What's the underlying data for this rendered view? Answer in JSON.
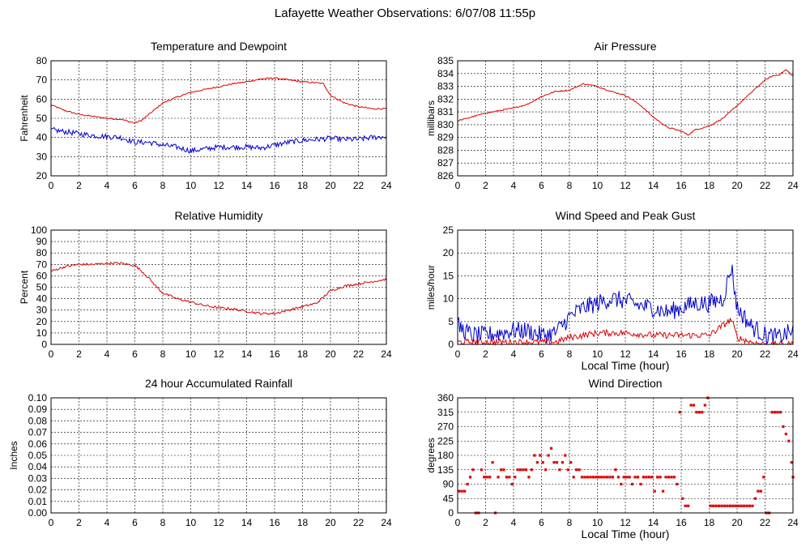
{
  "title": "Lafayette Weather Observations: 6/07/08 11:55p",
  "colors": {
    "primary": "#dd0000",
    "secondary": "#0000cc"
  },
  "chart_data": [
    {
      "id": "temp",
      "type": "line",
      "title": "Temperature and Dewpoint",
      "ylabel": "Fahrenheit",
      "xlabel": "",
      "xlim": [
        0,
        24
      ],
      "ylim": [
        20,
        80
      ],
      "xticks": [
        0,
        2,
        4,
        6,
        8,
        10,
        12,
        14,
        16,
        18,
        20,
        22,
        24
      ],
      "yticks": [
        "20",
        "30",
        "40",
        "50",
        "60",
        "70",
        "80"
      ],
      "ytick_values": [
        20,
        30,
        40,
        50,
        60,
        70,
        80
      ],
      "grid": true,
      "series": [
        {
          "color": "red",
          "noise": 0.4,
          "x": [
            0,
            1,
            2,
            3,
            4,
            5,
            5.5,
            6,
            6.5,
            7,
            7.5,
            8,
            8.5,
            9,
            10,
            11,
            12,
            13,
            14,
            15,
            16,
            17,
            18,
            19,
            19.5,
            20,
            21,
            22,
            23,
            24
          ],
          "y": [
            57,
            54,
            52,
            51,
            50,
            49.5,
            48.5,
            47.5,
            49,
            52,
            55,
            58,
            59.5,
            61,
            63.5,
            65,
            66.5,
            68,
            69,
            70.5,
            71,
            70,
            69,
            68.5,
            68,
            62,
            58,
            56,
            55,
            55
          ]
        },
        {
          "color": "blue",
          "noise": 1.4,
          "x": [
            0,
            1,
            2,
            3,
            4,
            5,
            6,
            7,
            8,
            9,
            10,
            11,
            12,
            13,
            14,
            15,
            16,
            17,
            18,
            19,
            20,
            21,
            22,
            23,
            24
          ],
          "y": [
            44,
            43,
            42,
            41,
            40.5,
            40,
            37.5,
            37.5,
            36,
            35,
            33,
            34,
            35,
            35,
            35,
            34.5,
            36,
            37.5,
            38.5,
            39,
            39.5,
            39,
            39,
            40,
            40.5
          ]
        }
      ]
    },
    {
      "id": "pressure",
      "type": "line",
      "title": "Air Pressure",
      "ylabel": "millibars",
      "xlabel": "",
      "xlim": [
        0,
        24
      ],
      "ylim": [
        826,
        835
      ],
      "xticks": [
        0,
        2,
        4,
        6,
        8,
        10,
        12,
        14,
        16,
        18,
        20,
        22,
        24
      ],
      "yticks": [
        "826",
        "827",
        "828",
        "829",
        "830",
        "831",
        "832",
        "833",
        "834",
        "835"
      ],
      "ytick_values": [
        826,
        827,
        828,
        829,
        830,
        831,
        832,
        833,
        834,
        835
      ],
      "grid": true,
      "series": [
        {
          "color": "red",
          "noise": 0.05,
          "x": [
            0,
            1,
            2,
            3,
            4,
            5,
            6,
            7,
            8,
            9,
            10,
            11,
            12,
            13,
            14,
            15,
            16,
            16.5,
            17,
            18,
            19,
            20,
            21,
            22,
            22.5,
            23,
            23.5,
            24
          ],
          "y": [
            830.3,
            830.6,
            830.9,
            831.1,
            831.3,
            831.6,
            832.2,
            832.6,
            832.7,
            833.2,
            833.0,
            832.6,
            832.3,
            831.6,
            830.6,
            829.8,
            829.5,
            829.2,
            829.6,
            829.9,
            830.5,
            831.5,
            832.5,
            833.5,
            833.8,
            833.9,
            834.3,
            833.8
          ]
        }
      ]
    },
    {
      "id": "humidity",
      "type": "line",
      "title": "Relative Humidity",
      "ylabel": "Percent",
      "xlabel": "",
      "xlim": [
        0,
        24
      ],
      "ylim": [
        0,
        100
      ],
      "xticks": [
        0,
        2,
        4,
        6,
        8,
        10,
        12,
        14,
        16,
        18,
        20,
        22,
        24
      ],
      "yticks": [
        "0",
        "10",
        "20",
        "30",
        "40",
        "50",
        "60",
        "70",
        "80",
        "90",
        "100"
      ],
      "ytick_values": [
        0,
        10,
        20,
        30,
        40,
        50,
        60,
        70,
        80,
        90,
        100
      ],
      "grid": true,
      "series": [
        {
          "color": "red",
          "noise": 1.0,
          "x": [
            0,
            1,
            2,
            3,
            4,
            5,
            6,
            6.5,
            7,
            7.5,
            8,
            9,
            10,
            11,
            12,
            13,
            14,
            15,
            16,
            17,
            18,
            19,
            20,
            21,
            22,
            23,
            24
          ],
          "y": [
            64,
            68,
            70,
            70,
            71,
            71,
            69,
            64,
            58,
            51,
            45,
            40,
            37,
            34,
            32,
            31,
            29,
            27,
            27,
            30,
            33,
            36,
            47,
            51,
            53,
            55,
            57
          ]
        }
      ]
    },
    {
      "id": "wind",
      "type": "line",
      "title": "Wind Speed and Peak Gust",
      "ylabel": "miles/hour",
      "xlabel": "Local Time (hour)",
      "xlim": [
        0,
        24
      ],
      "ylim": [
        0,
        25
      ],
      "xticks": [
        0,
        2,
        4,
        6,
        8,
        10,
        12,
        14,
        16,
        18,
        20,
        22,
        24
      ],
      "yticks": [
        "0",
        "5",
        "10",
        "15",
        "20",
        "25"
      ],
      "ytick_values": [
        0,
        5,
        10,
        15,
        20,
        25
      ],
      "grid": true,
      "series": [
        {
          "color": "blue",
          "noise": 2.0,
          "x": [
            0,
            1,
            2,
            3,
            4,
            5,
            6,
            7,
            8,
            9,
            10,
            11,
            12,
            13,
            14,
            15,
            16,
            17,
            18,
            19,
            19.6,
            20,
            21,
            22,
            23,
            24
          ],
          "y": [
            4,
            2,
            2,
            2.5,
            3,
            3,
            2,
            2.5,
            6,
            8,
            9,
            10,
            9.5,
            8.5,
            8,
            7,
            8,
            9,
            9,
            10,
            17,
            8,
            4,
            2,
            1.5,
            3
          ]
        },
        {
          "color": "red",
          "noise": 0.7,
          "x": [
            0,
            2,
            4,
            6,
            7,
            8,
            10,
            12,
            14,
            16,
            18,
            19.6,
            20,
            21,
            22,
            24
          ],
          "y": [
            0.5,
            0.5,
            0.5,
            0.5,
            0.5,
            1.5,
            2.5,
            2.5,
            2,
            2,
            2,
            5.5,
            1.5,
            0.5,
            0,
            0
          ]
        }
      ]
    },
    {
      "id": "rain",
      "type": "line",
      "title": "24 hour Accumulated Rainfall",
      "ylabel": "Inches",
      "xlabel": "",
      "xlim": [
        0,
        24
      ],
      "ylim": [
        0,
        0.1
      ],
      "xticks": [
        0,
        2,
        4,
        6,
        8,
        10,
        12,
        14,
        16,
        18,
        20,
        22,
        24
      ],
      "yticks": [
        "0.00",
        "0.01",
        "0.02",
        "0.03",
        "0.04",
        "0.05",
        "0.06",
        "0.07",
        "0.08",
        "0.09",
        "0.10"
      ],
      "ytick_values": [
        0,
        0.01,
        0.02,
        0.03,
        0.04,
        0.05,
        0.06,
        0.07,
        0.08,
        0.09,
        0.1
      ],
      "grid": true,
      "series": [
        {
          "color": "red",
          "noise": 0,
          "x": [
            0,
            24
          ],
          "y": [
            0,
            0
          ]
        }
      ]
    },
    {
      "id": "direction",
      "type": "scatter",
      "title": "Wind Direction",
      "ylabel": "degrees",
      "xlabel": "Local Time (hour)",
      "xlim": [
        0,
        24
      ],
      "ylim": [
        0,
        360
      ],
      "xticks": [
        0,
        2,
        4,
        6,
        8,
        10,
        12,
        14,
        16,
        18,
        20,
        22,
        24
      ],
      "yticks": [
        "0",
        "45",
        "90",
        "135",
        "180",
        "225",
        "270",
        "315",
        "360"
      ],
      "ytick_values": [
        0,
        45,
        90,
        135,
        180,
        225,
        270,
        315,
        360
      ],
      "grid": true,
      "series": [
        {
          "color": "red",
          "points": [
            [
              0.1,
              68
            ],
            [
              0.3,
              68
            ],
            [
              0.5,
              68
            ],
            [
              0.7,
              90
            ],
            [
              0.9,
              112
            ],
            [
              1.1,
              135
            ],
            [
              1.3,
              0
            ],
            [
              1.5,
              0
            ],
            [
              1.7,
              135
            ],
            [
              1.9,
              112
            ],
            [
              2.1,
              112
            ],
            [
              2.3,
              112
            ],
            [
              2.5,
              158
            ],
            [
              2.7,
              0
            ],
            [
              2.9,
              112
            ],
            [
              3.1,
              135
            ],
            [
              3.3,
              135
            ],
            [
              3.5,
              112
            ],
            [
              3.7,
              112
            ],
            [
              3.9,
              90
            ],
            [
              4.1,
              112
            ],
            [
              4.3,
              135
            ],
            [
              4.5,
              135
            ],
            [
              4.7,
              135
            ],
            [
              4.9,
              135
            ],
            [
              5.1,
              112
            ],
            [
              5.3,
              135
            ],
            [
              5.5,
              180
            ],
            [
              5.7,
              158
            ],
            [
              5.9,
              180
            ],
            [
              6.1,
              158
            ],
            [
              6.3,
              135
            ],
            [
              6.5,
              180
            ],
            [
              6.7,
              202
            ],
            [
              6.9,
              158
            ],
            [
              7.1,
              158
            ],
            [
              7.3,
              135
            ],
            [
              7.5,
              158
            ],
            [
              7.7,
              180
            ],
            [
              7.9,
              135
            ],
            [
              8.1,
              158
            ],
            [
              8.3,
              112
            ],
            [
              8.5,
              135
            ],
            [
              8.7,
              135
            ],
            [
              8.9,
              112
            ],
            [
              9.1,
              112
            ],
            [
              9.3,
              112
            ],
            [
              9.5,
              112
            ],
            [
              9.7,
              112
            ],
            [
              9.9,
              112
            ],
            [
              10.1,
              112
            ],
            [
              10.3,
              112
            ],
            [
              10.5,
              112
            ],
            [
              10.7,
              112
            ],
            [
              10.9,
              112
            ],
            [
              11.1,
              112
            ],
            [
              11.3,
              135
            ],
            [
              11.5,
              112
            ],
            [
              11.7,
              90
            ],
            [
              11.9,
              112
            ],
            [
              12.1,
              112
            ],
            [
              12.3,
              112
            ],
            [
              12.5,
              90
            ],
            [
              12.7,
              112
            ],
            [
              12.9,
              112
            ],
            [
              13.1,
              90
            ],
            [
              13.3,
              112
            ],
            [
              13.5,
              112
            ],
            [
              13.7,
              112
            ],
            [
              13.9,
              112
            ],
            [
              14.1,
              68
            ],
            [
              14.3,
              112
            ],
            [
              14.5,
              112
            ],
            [
              14.7,
              68
            ],
            [
              14.9,
              112
            ],
            [
              15.1,
              112
            ],
            [
              15.3,
              112
            ],
            [
              15.5,
              112
            ],
            [
              15.7,
              90
            ],
            [
              15.9,
              315
            ],
            [
              16.1,
              45
            ],
            [
              16.3,
              22
            ],
            [
              16.5,
              22
            ],
            [
              16.7,
              337
            ],
            [
              16.9,
              337
            ],
            [
              17.1,
              315
            ],
            [
              17.3,
              315
            ],
            [
              17.5,
              315
            ],
            [
              17.7,
              337
            ],
            [
              17.9,
              360
            ],
            [
              18.1,
              22
            ],
            [
              18.3,
              22
            ],
            [
              18.5,
              22
            ],
            [
              18.7,
              22
            ],
            [
              18.9,
              22
            ],
            [
              19.1,
              22
            ],
            [
              19.3,
              22
            ],
            [
              19.5,
              22
            ],
            [
              19.7,
              22
            ],
            [
              19.9,
              22
            ],
            [
              20.1,
              22
            ],
            [
              20.3,
              22
            ],
            [
              20.5,
              22
            ],
            [
              20.7,
              22
            ],
            [
              20.9,
              22
            ],
            [
              21.1,
              22
            ],
            [
              21.3,
              45
            ],
            [
              21.5,
              68
            ],
            [
              21.7,
              68
            ],
            [
              21.9,
              112
            ],
            [
              22.1,
              0
            ],
            [
              22.3,
              0
            ],
            [
              22.5,
              315
            ],
            [
              22.7,
              315
            ],
            [
              22.9,
              315
            ],
            [
              23.1,
              315
            ],
            [
              23.3,
              270
            ],
            [
              23.5,
              247
            ],
            [
              23.7,
              225
            ],
            [
              23.9,
              158
            ],
            [
              24.0,
              112
            ]
          ]
        }
      ]
    }
  ]
}
